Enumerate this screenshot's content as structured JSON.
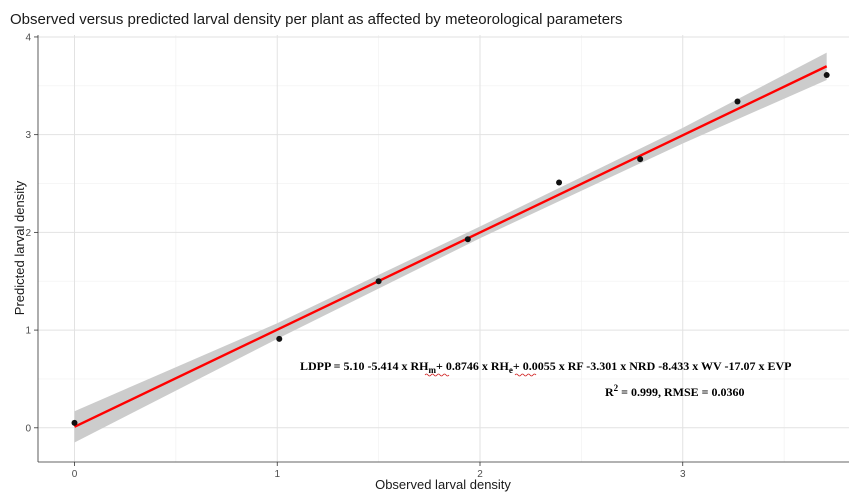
{
  "chart_data": {
    "type": "scatter",
    "title": "Observed versus predicted larval density per plant as affected by meteorological parameters",
    "xlabel": "Observed larval density",
    "ylabel": "Predicted larval density",
    "xlim": [
      -0.18,
      3.82
    ],
    "ylim": [
      -0.35,
      4.02
    ],
    "x_ticks": [
      0,
      1,
      2,
      3
    ],
    "y_ticks": [
      0,
      1,
      2,
      3,
      4
    ],
    "x_tick_labels": [
      "0",
      "1",
      "2",
      "3"
    ],
    "y_tick_labels": [
      "0",
      "1",
      "2",
      "3",
      "4"
    ],
    "grid": true,
    "points": [
      {
        "x": 0.0,
        "y": 0.05
      },
      {
        "x": 1.01,
        "y": 0.91
      },
      {
        "x": 1.5,
        "y": 1.5
      },
      {
        "x": 1.94,
        "y": 1.93
      },
      {
        "x": 2.39,
        "y": 2.51
      },
      {
        "x": 2.79,
        "y": 2.75
      },
      {
        "x": 3.27,
        "y": 3.34
      },
      {
        "x": 3.71,
        "y": 3.61
      }
    ],
    "fit_line": {
      "color": "#ff0000",
      "x": [
        0.0,
        3.71
      ],
      "y": [
        0.01,
        3.7
      ]
    },
    "confidence_band": {
      "color": "#cccccc",
      "x": [
        0.0,
        1.0,
        2.0,
        3.0,
        3.71
      ],
      "upper": [
        0.17,
        1.07,
        2.06,
        3.07,
        3.84
      ],
      "lower": [
        -0.15,
        0.91,
        1.94,
        2.91,
        3.56
      ]
    },
    "annotations": {
      "equation": {
        "prefix": "LDPP = 5.10 -5.414 x ",
        "rh_m": "RH",
        "rh_m_sub": "m",
        "mid": "+ 0.8746 x ",
        "rh_e": "RH",
        "rh_e_sub": "e",
        "suffix": "+ 0.0055 x RF -3.301 x NRD -8.433 x WV -17.07 x EVP"
      },
      "stats": {
        "r_label": "R",
        "r_sup": "2",
        "rest": " = 0.999, RMSE = 0.0360"
      }
    }
  }
}
